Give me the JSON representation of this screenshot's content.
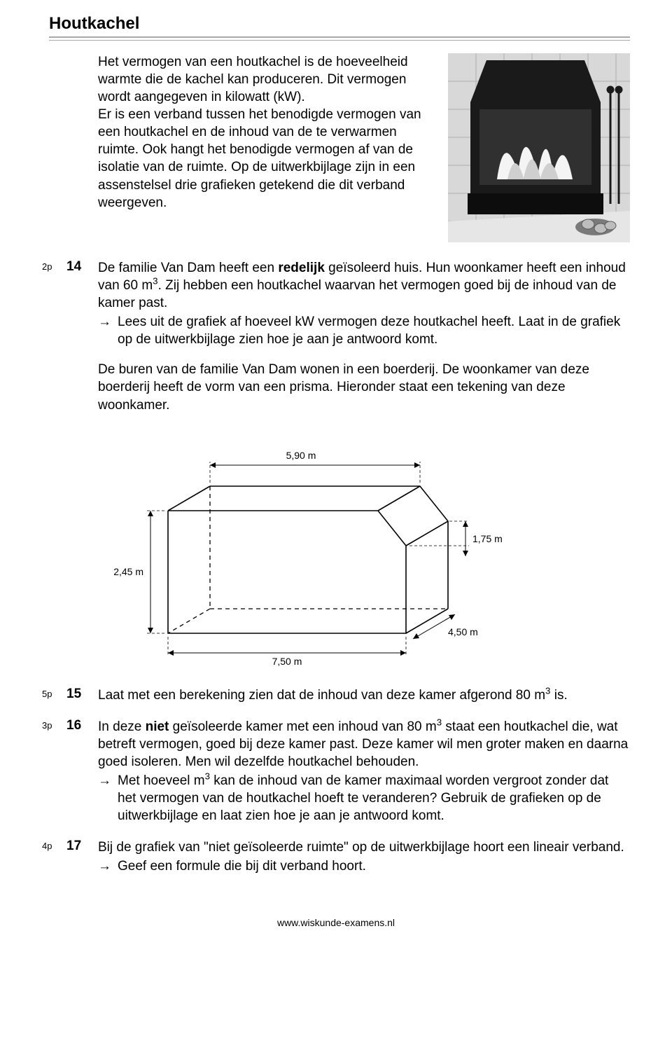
{
  "title": "Houtkachel",
  "intro": "Het vermogen van een houtkachel is de hoeveelheid warmte die de kachel kan produceren. Dit vermogen wordt aangegeven in kilowatt (kW).\nEr is een verband tussen het benodigde vermogen van een houtkachel en de inhoud van de te verwarmen ruimte. Ook hangt het benodigde vermogen af van de isolatie van de ruimte. Op de uitwerkbijlage zijn in een assenstelsel drie grafieken getekend die dit verband weergeven.",
  "stove": {
    "tile_color": "#d8d8d8",
    "grout_color": "#b0b0b0",
    "body_color": "#1a1a1a",
    "flame_light": "#f4f4f4",
    "flame_mid": "#cfcfcf",
    "wood_color": "#9b9b9b"
  },
  "diagram": {
    "labels": {
      "top": "5,90 m",
      "left": "2,45 m",
      "right_top": "1,75 m",
      "right_bottom": "4,50 m",
      "bottom": "7,50 m"
    },
    "stroke": "#000000",
    "dash": "5,5",
    "fontsize": 14
  },
  "questions": [
    {
      "points": "2p",
      "num": "14",
      "body_html": "De familie Van Dam heeft een <b>redelijk</b> geïsoleerd huis. Hun woonkamer heeft een inhoud van 60 m<sup>3</sup>. Zij hebben een houtkachel waarvan het vermogen goed bij de inhoud van de kamer past.",
      "arrow": "Lees uit de grafiek af hoeveel kW vermogen deze houtkachel heeft. Laat in de grafiek op de uitwerkbijlage zien hoe je aan je antwoord komt.",
      "after_html": "De buren van de familie Van Dam wonen in een boerderij. De woonkamer van deze boerderij heeft de vorm van een prisma. Hieronder staat een tekening van deze woonkamer."
    },
    {
      "points": "5p",
      "num": "15",
      "body_html": "Laat met een berekening zien dat de inhoud van deze kamer afgerond 80 m<sup>3</sup> is."
    },
    {
      "points": "3p",
      "num": "16",
      "body_html": "In deze <b>niet</b> geïsoleerde kamer met een inhoud van 80 m<sup>3</sup> staat een houtkachel die, wat betreft vermogen, goed bij deze kamer past. Deze kamer wil men groter maken en daarna goed isoleren. Men wil dezelfde houtkachel behouden.",
      "arrow": "Met hoeveel m<sup>3</sup> kan de inhoud van de kamer maximaal worden vergroot zonder dat het vermogen van de houtkachel hoeft te veranderen? Gebruik de grafieken op de uitwerkbijlage en laat zien hoe je aan je antwoord komt."
    },
    {
      "points": "4p",
      "num": "17",
      "body_html": "Bij de grafiek van \"niet geïsoleerde ruimte\" op de uitwerkbijlage hoort een lineair verband.",
      "arrow": "Geef een formule die bij dit verband hoort."
    }
  ],
  "footer": "www.wiskunde-examens.nl"
}
